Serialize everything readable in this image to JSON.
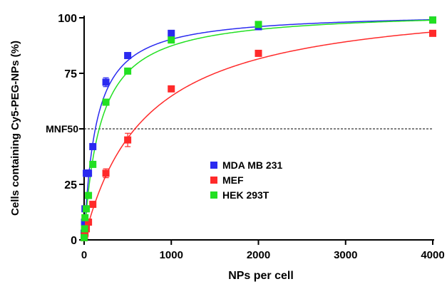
{
  "chart_data": {
    "type": "scatter",
    "title": "",
    "xlabel": "NPs per cell",
    "ylabel": "Cells containing Cy5-PEG-NPs (%)",
    "xlim": [
      0,
      4000
    ],
    "ylim": [
      0,
      100
    ],
    "x_ticks": [
      0,
      1000,
      2000,
      3000,
      4000
    ],
    "x_tick_labels": [
      "0",
      "1000",
      "2000",
      "3000",
      "4000"
    ],
    "y_ticks": [
      0,
      25,
      50,
      75,
      100
    ],
    "y_tick_labels": [
      "0",
      "25",
      "",
      "75",
      "100"
    ],
    "grid": false,
    "legend_position": "center",
    "reference_line": {
      "label": "MNF50",
      "y": 50,
      "style": "dashed"
    },
    "series": [
      {
        "name": "MDA MB 231",
        "color": "#2a2af0",
        "x": [
          0,
          5,
          10,
          25,
          50,
          100,
          250,
          500,
          1000,
          2000,
          4000
        ],
        "y": [
          3,
          8,
          14,
          30,
          30,
          42,
          71,
          83,
          93,
          96,
          99
        ],
        "err": [
          0.5,
          0.5,
          1,
          1.5,
          1.5,
          1,
          2,
          1,
          1,
          1,
          1
        ],
        "fit_plateau": 102.5,
        "fit_half": 135
      },
      {
        "name": "MEF",
        "color": "#ff2a2a",
        "x": [
          0,
          5,
          10,
          25,
          50,
          100,
          250,
          500,
          1000,
          2000,
          4000
        ],
        "y": [
          1,
          2,
          3,
          5,
          8,
          16,
          30,
          45,
          68,
          84,
          93
        ],
        "err": [
          0.5,
          0.5,
          0.5,
          1,
          1,
          1,
          2,
          3,
          1,
          1,
          1
        ],
        "fit_plateau": 110,
        "fit_half": 700
      },
      {
        "name": "HEK 293T",
        "color": "#22e022",
        "x": [
          0,
          5,
          10,
          25,
          50,
          100,
          250,
          500,
          1000,
          2000,
          4000
        ],
        "y": [
          1,
          5,
          10,
          14,
          20,
          34,
          62,
          76,
          90,
          97,
          99
        ],
        "err": [
          0.5,
          0.5,
          0.5,
          1,
          1,
          1,
          1,
          1,
          1,
          1,
          1
        ],
        "fit_plateau": 103.5,
        "fit_half": 185
      }
    ]
  }
}
